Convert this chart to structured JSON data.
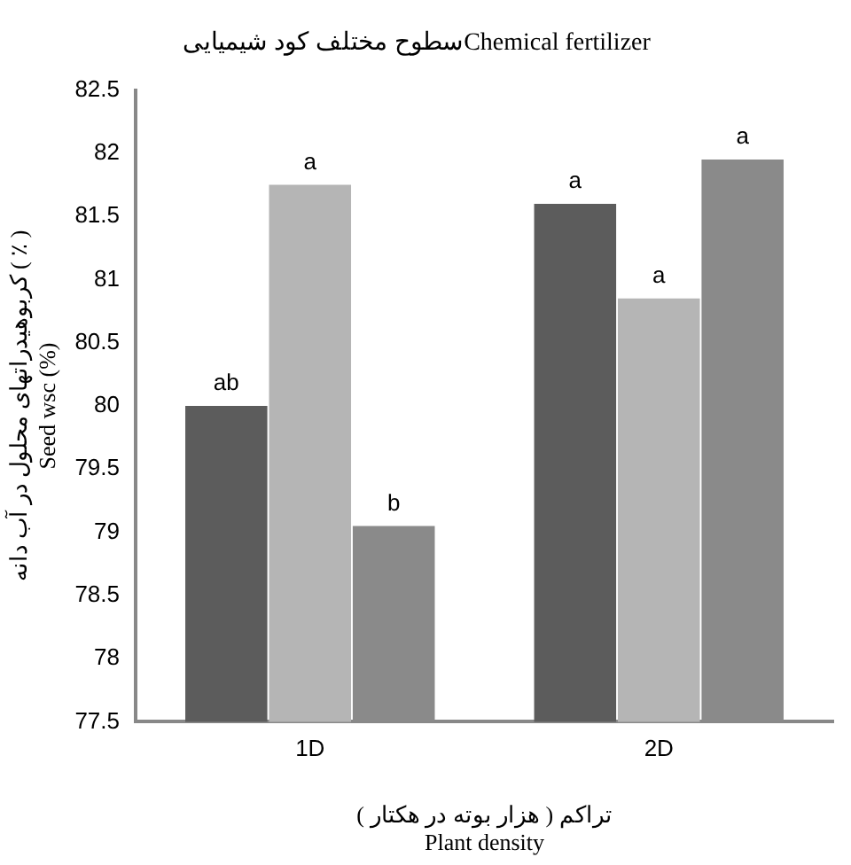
{
  "chart_data": {
    "type": "bar",
    "title": "سطوح مختلف کود شیمیاییChemical fertilizer",
    "xlabel": "تراکم ( هزار بوته در هکتار )\nPlant density",
    "ylabel": "کربوهیدراتهای محلول در آب دانه ( ٪ )\nSeed wsc (%)",
    "categories": [
      "1D",
      "2D"
    ],
    "series": [
      {
        "color": "#5c5c5c",
        "values": [
          80.0,
          81.6
        ],
        "value_labels": [
          "ab",
          "a"
        ]
      },
      {
        "color": "#b5b5b5",
        "values": [
          81.75,
          80.85
        ],
        "value_labels": [
          "a",
          "a"
        ]
      },
      {
        "color": "#8a8a8a",
        "values": [
          79.05,
          81.95
        ],
        "value_labels": [
          "b",
          "a"
        ]
      }
    ],
    "ylim": [
      77.5,
      82.5
    ],
    "yticks": [
      77.5,
      78,
      78.5,
      79,
      79.5,
      80,
      80.5,
      81,
      81.5,
      82,
      82.5
    ],
    "grid": false,
    "legend": false
  }
}
